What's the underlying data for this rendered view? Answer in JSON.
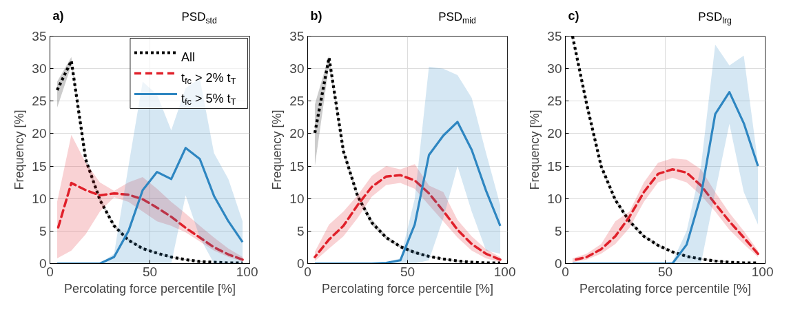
{
  "chart_data": [
    {
      "type": "line",
      "title": "PSD$_{std}$",
      "annotations": [
        "a)"
      ],
      "xlabel": "Percolating force percentile [%]",
      "ylabel": "Frequency [%]",
      "x": [
        3.6,
        10.7,
        17.9,
        25,
        32.1,
        39.3,
        46.4,
        53.6,
        60.7,
        67.9,
        75,
        82.1,
        89.3,
        96.4
      ],
      "xlim": [
        0,
        100
      ],
      "xticks": [
        0,
        50,
        100
      ],
      "ylim": [
        0,
        35
      ],
      "yticks": [
        0,
        5,
        10,
        15,
        20,
        25,
        30,
        35
      ],
      "grid": true,
      "legend": "top right",
      "series": [
        {
          "name": "All",
          "color": "#000000",
          "line_style": "dotted",
          "values": [
            26.7,
            31.2,
            16,
            9.8,
            5.8,
            3.6,
            2.3,
            1.6,
            1.0,
            0.6,
            0.3,
            0.2,
            0.1,
            0.1
          ],
          "lower": [
            24,
            30.5,
            15.5,
            9.5,
            5.6,
            3.5,
            2.2,
            1.5,
            0.9,
            0.5,
            0.25,
            0.15,
            0.05,
            0
          ],
          "upper": [
            28,
            31.8,
            16.5,
            10.2,
            6.1,
            3.8,
            2.5,
            1.7,
            1.1,
            0.7,
            0.4,
            0.25,
            0.15,
            0.1
          ]
        },
        {
          "name": "t$_{fc}$ > 2% t$_{T}$",
          "color": "#e0202a",
          "line_style": "dashed",
          "values": [
            5,
            12.4,
            11.3,
            10.5,
            10.8,
            10.6,
            9.9,
            8.6,
            7.2,
            5.5,
            4,
            2.5,
            1.4,
            0.6
          ],
          "lower": [
            0.8,
            2,
            4.5,
            8,
            10.2,
            9.5,
            8,
            6.5,
            5.8,
            4.8,
            3.4,
            2,
            1,
            0.3
          ],
          "upper": [
            9.5,
            19.8,
            15.5,
            12.5,
            11.2,
            12.5,
            13.3,
            11.5,
            9.5,
            7.7,
            5.8,
            4,
            2.3,
            1
          ]
        },
        {
          "name": "t$_{fc}$ > 5% t$_{T}$",
          "color": "#2e86c1",
          "line_style": "solid",
          "values": [
            0,
            0,
            0,
            0,
            1,
            5,
            11.3,
            14.1,
            13,
            17.8,
            16.1,
            10.4,
            6.5,
            3.3
          ],
          "lower": [
            0,
            0,
            0,
            0,
            0,
            0,
            0,
            0,
            0,
            10.5,
            4,
            0,
            0,
            0
          ],
          "upper": [
            0,
            0,
            0,
            0,
            1.5,
            15,
            28,
            26,
            20.5,
            27,
            28.5,
            17,
            13,
            6.5
          ]
        }
      ]
    },
    {
      "type": "line",
      "title": "PSD$_{mid}$",
      "annotations": [
        "b)"
      ],
      "xlabel": "Percolating force percentile [%]",
      "ylabel": "Frequency [%]",
      "x": [
        3.6,
        10.7,
        17.9,
        25,
        32.1,
        39.3,
        46.4,
        53.6,
        60.7,
        67.9,
        75,
        82.1,
        89.3,
        96.4
      ],
      "xlim": [
        0,
        100
      ],
      "xticks": [
        0,
        50,
        100
      ],
      "ylim": [
        0,
        35
      ],
      "yticks": [
        0,
        5,
        10,
        15,
        20,
        25,
        30,
        35
      ],
      "grid": true,
      "series": [
        {
          "color": "#000000",
          "line_style": "dotted",
          "values": [
            20.1,
            31.7,
            17.3,
            10.4,
            6.3,
            4,
            2.6,
            1.7,
            1.1,
            0.7,
            0.4,
            0.2,
            0.1,
            0.1
          ],
          "lower": [
            15,
            30.5,
            16.8,
            10,
            5.9,
            3.7,
            2.4,
            1.5,
            1,
            0.6,
            0.3,
            0.15,
            0.05,
            0
          ],
          "upper": [
            24.5,
            32,
            17.8,
            10.9,
            6.8,
            4.3,
            2.8,
            1.9,
            1.2,
            0.8,
            0.5,
            0.3,
            0.15,
            0.1
          ]
        },
        {
          "color": "#e0202a",
          "line_style": "dashed",
          "values": [
            1,
            3.7,
            5.8,
            9,
            11.8,
            13.4,
            13.6,
            12.8,
            10.8,
            8.1,
            5.2,
            3,
            1.5,
            0.6
          ],
          "lower": [
            0.4,
            2.3,
            4.2,
            7,
            10.3,
            12.1,
            12.4,
            11.5,
            9,
            6.5,
            4,
            2,
            0.8,
            0.2
          ],
          "upper": [
            1.8,
            6,
            8,
            10.5,
            13.5,
            15,
            14.5,
            15.3,
            12,
            11,
            6.7,
            4.2,
            2.2,
            1
          ]
        },
        {
          "color": "#2e86c1",
          "line_style": "solid",
          "values": [
            0,
            0,
            0,
            0,
            0,
            0.1,
            0.5,
            6,
            16.7,
            19.7,
            21.8,
            17.5,
            11.2,
            5.8
          ],
          "lower": [
            0,
            0,
            0,
            0,
            0,
            0,
            0,
            0,
            0.5,
            7,
            15,
            8,
            2,
            1.5
          ],
          "upper": [
            0,
            0,
            0,
            0,
            0,
            0.2,
            0.8,
            10,
            30.3,
            30,
            29,
            25.5,
            17,
            9
          ]
        }
      ]
    },
    {
      "type": "line",
      "title": "PSD$_{lrg}$",
      "annotations": [
        "c)"
      ],
      "xlabel": "Percolating force percentile [%]",
      "ylabel": "Frequency [%]",
      "x": [
        3.6,
        10.7,
        17.9,
        25,
        32.1,
        39.3,
        46.4,
        53.6,
        60.7,
        67.9,
        75,
        82.1,
        89.3,
        96.4
      ],
      "xlim": [
        0,
        100
      ],
      "xticks": [
        0,
        50,
        100
      ],
      "ylim": [
        0,
        35
      ],
      "yticks": [
        0,
        5,
        10,
        15,
        20,
        25,
        30,
        35
      ],
      "grid": true,
      "series": [
        {
          "color": "#000000",
          "line_style": "dotted",
          "values": [
            35,
            24.5,
            15,
            9.8,
            6.5,
            4.2,
            2.8,
            1.8,
            1.1,
            0.7,
            0.4,
            0.2,
            0.1,
            0.1
          ],
          "lower": [
            34.5,
            24.1,
            14.7,
            9.5,
            6.2,
            4,
            2.6,
            1.7,
            1,
            0.6,
            0.3,
            0.15,
            0.05,
            0
          ],
          "upper": [
            35,
            24.9,
            15.3,
            10.1,
            6.8,
            4.4,
            3,
            1.9,
            1.2,
            0.8,
            0.5,
            0.3,
            0.15,
            0.1
          ]
        },
        {
          "color": "#e0202a",
          "line_style": "dashed",
          "values": [
            0.5,
            1,
            2.2,
            4.2,
            7.2,
            11,
            13.8,
            14.5,
            14,
            12,
            9.2,
            6.5,
            4,
            1.5
          ],
          "lower": [
            0.2,
            0.6,
            1.5,
            3,
            5.5,
            9.5,
            12.5,
            13.2,
            12.5,
            10.5,
            8,
            5.2,
            3,
            1
          ],
          "upper": [
            0.8,
            1.5,
            3,
            6.5,
            8,
            12.5,
            15.5,
            16.2,
            16,
            14.5,
            11,
            7.8,
            5,
            2
          ]
        },
        {
          "color": "#2e86c1",
          "line_style": "solid",
          "values": [
            0,
            0,
            0,
            0,
            0,
            0,
            0,
            0,
            2.9,
            10.5,
            23,
            26.4,
            21.6,
            15
          ],
          "lower": [
            0,
            0,
            0,
            0,
            0,
            0,
            0,
            0,
            0,
            0,
            11,
            21.5,
            11,
            6
          ],
          "upper": [
            0,
            0,
            0,
            0,
            0,
            0,
            0,
            0.3,
            5,
            15,
            33.7,
            30.5,
            32,
            15.5
          ]
        }
      ]
    }
  ]
}
